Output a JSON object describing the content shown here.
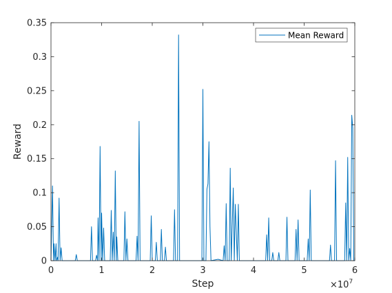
{
  "chart_data": {
    "type": "line",
    "title": "",
    "xlabel": "Step",
    "ylabel": "Reward",
    "x_multiplier_label": "×10",
    "x_multiplier_exp": "7",
    "xlim": [
      0,
      6
    ],
    "ylim": [
      0,
      0.35
    ],
    "x_ticks": [
      0,
      1,
      2,
      3,
      4,
      5,
      6
    ],
    "x_tick_labels": [
      "0",
      "1",
      "2",
      "3",
      "4",
      "5",
      "6"
    ],
    "y_ticks": [
      0,
      0.05,
      0.1,
      0.15,
      0.2,
      0.25,
      0.3,
      0.35
    ],
    "y_tick_labels": [
      "0",
      "0.05",
      "0.1",
      "0.15",
      "0.2",
      "0.25",
      "0.3",
      "0.35"
    ],
    "grid": false,
    "legend_position": "top-right",
    "line_color": "#0072BD",
    "series": [
      {
        "name": "Mean Reward",
        "x": [
          0,
          0.03,
          0.05,
          0.06,
          0.08,
          0.1,
          0.11,
          0.13,
          0.14,
          0.16,
          0.18,
          0.2,
          0.22,
          0.25,
          0.27,
          0.3,
          0.48,
          0.5,
          0.52,
          0.78,
          0.8,
          0.82,
          0.88,
          0.9,
          0.92,
          0.93,
          0.95,
          0.97,
          0.99,
          1.0,
          1.02,
          1.04,
          1.06,
          1.08,
          1.17,
          1.19,
          1.21,
          1.23,
          1.25,
          1.27,
          1.29,
          1.3,
          1.32,
          1.44,
          1.46,
          1.48,
          1.5,
          1.52,
          1.68,
          1.7,
          1.72,
          1.74,
          1.76,
          1.96,
          1.98,
          2.0,
          2.06,
          2.08,
          2.1,
          2.16,
          2.18,
          2.2,
          2.24,
          2.26,
          2.28,
          2.42,
          2.44,
          2.46,
          2.5,
          2.52,
          2.54,
          2.98,
          3.0,
          3.02,
          3.06,
          3.08,
          3.1,
          3.12,
          3.14,
          3.16,
          3.3,
          3.4,
          3.42,
          3.44,
          3.46,
          3.48,
          3.52,
          3.54,
          3.56,
          3.6,
          3.62,
          3.64,
          3.68,
          3.7,
          3.72,
          4.24,
          4.26,
          4.28,
          4.3,
          4.32,
          4.36,
          4.38,
          4.4,
          4.48,
          4.5,
          4.52,
          4.64,
          4.66,
          4.68,
          4.82,
          4.84,
          4.86,
          4.88,
          4.9,
          4.92,
          5.06,
          5.08,
          5.1,
          5.12,
          5.14,
          5.5,
          5.52,
          5.54,
          5.6,
          5.62,
          5.64,
          5.8,
          5.82,
          5.84,
          5.86,
          5.88,
          5.9,
          5.92,
          5.94,
          5.96,
          5.98,
          6.0
        ],
        "y": [
          0,
          0.11,
          0.0,
          0.025,
          0.0,
          0.025,
          0.0,
          0.005,
          0.0,
          0.092,
          0.0,
          0.019,
          0.0,
          0.0,
          0.0,
          0.0,
          0.0,
          0.009,
          0.0,
          0.0,
          0.05,
          0.0,
          0.0,
          0.008,
          0.0,
          0.063,
          0.0,
          0.168,
          0.0,
          0.07,
          0.0,
          0.048,
          0.0,
          0.0,
          0.0,
          0.074,
          0.0,
          0.042,
          0.0,
          0.132,
          0.0,
          0.035,
          0.0,
          0.0,
          0.072,
          0.0,
          0.032,
          0.0,
          0.0,
          0.036,
          0.0,
          0.205,
          0.0,
          0.0,
          0.066,
          0.0,
          0.0,
          0.027,
          0.0,
          0.0,
          0.046,
          0.0,
          0.0,
          0.02,
          0.0,
          0.0,
          0.075,
          0.0,
          0.0,
          0.332,
          0.0,
          0.0,
          0.252,
          0.0,
          0.0,
          0.105,
          0.113,
          0.175,
          0.05,
          0.0,
          0.002,
          0.0,
          0.022,
          0.0,
          0.084,
          0.0,
          0.0,
          0.136,
          0.0,
          0.107,
          0.0,
          0.083,
          0.0,
          0.083,
          0.0,
          0.0,
          0.038,
          0.0,
          0.063,
          0.0,
          0.0,
          0.012,
          0.0,
          0.0,
          0.012,
          0.0,
          0.0,
          0.064,
          0.0,
          0.0,
          0.046,
          0.0,
          0.06,
          0.0,
          0.0,
          0.0,
          0.032,
          0.0,
          0.104,
          0.0,
          0.0,
          0.023,
          0.0,
          0.0,
          0.147,
          0.0,
          0.0,
          0.085,
          0.0,
          0.152,
          0.0,
          0.018,
          0.0,
          0.214,
          0.195,
          0.0,
          0.0
        ]
      }
    ]
  }
}
